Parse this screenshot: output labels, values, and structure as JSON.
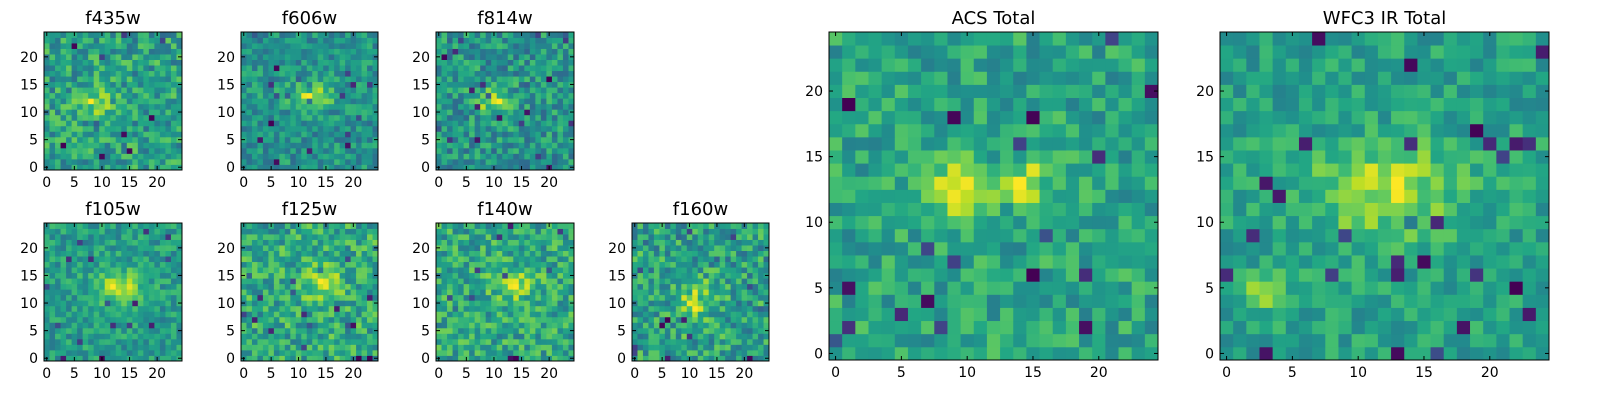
{
  "figure": {
    "description_title": ""
  },
  "chart_data": [
    {
      "type": "heatmap",
      "title": "f435w",
      "xlim": [
        0,
        24
      ],
      "ylim": [
        0,
        24
      ],
      "xticks": [
        0,
        5,
        10,
        15,
        20
      ],
      "yticks": [
        0,
        5,
        10,
        15,
        20
      ],
      "colormap": "viridis",
      "grid_size": 25,
      "seed": 11,
      "blobs": [
        {
          "cx": 9,
          "cy": 12,
          "sx": 2.0,
          "sy": 1.8,
          "amp": 0.35
        }
      ],
      "noise": 0.55,
      "base": 0.55
    },
    {
      "type": "heatmap",
      "title": "f606w",
      "xlim": [
        0,
        24
      ],
      "ylim": [
        0,
        24
      ],
      "xticks": [
        0,
        5,
        10,
        15,
        20
      ],
      "yticks": [
        0,
        5,
        10,
        15,
        20
      ],
      "colormap": "viridis",
      "grid_size": 25,
      "seed": 23,
      "blobs": [
        {
          "cx": 12,
          "cy": 13,
          "sx": 3.5,
          "sy": 1.5,
          "amp": 0.45
        }
      ],
      "noise": 0.45,
      "base": 0.5
    },
    {
      "type": "heatmap",
      "title": "f814w",
      "xlim": [
        0,
        24
      ],
      "ylim": [
        0,
        24
      ],
      "xticks": [
        0,
        5,
        10,
        15,
        20
      ],
      "yticks": [
        0,
        5,
        10,
        15,
        20
      ],
      "colormap": "viridis",
      "grid_size": 25,
      "seed": 37,
      "blobs": [
        {
          "cx": 10,
          "cy": 12,
          "sx": 2.5,
          "sy": 1.8,
          "amp": 0.4
        }
      ],
      "noise": 0.5,
      "base": 0.55
    },
    {
      "type": "heatmap",
      "title": "ACS Total",
      "xlim": [
        0,
        24
      ],
      "ylim": [
        0,
        24
      ],
      "xticks": [
        0,
        5,
        10,
        15,
        20
      ],
      "yticks": [
        0,
        5,
        10,
        15,
        20
      ],
      "colormap": "viridis",
      "grid_size": 25,
      "seed": 51,
      "blobs": [
        {
          "cx": 9.5,
          "cy": 12.5,
          "sx": 1.5,
          "sy": 1.6,
          "amp": 0.45
        },
        {
          "cx": 14.5,
          "cy": 13,
          "sx": 1.3,
          "sy": 1.3,
          "amp": 0.35
        }
      ],
      "noise": 0.35,
      "base": 0.58
    },
    {
      "type": "heatmap",
      "title": "WFC3 IR Total",
      "xlim": [
        0,
        24
      ],
      "ylim": [
        0,
        24
      ],
      "xticks": [
        0,
        5,
        10,
        15,
        20
      ],
      "yticks": [
        0,
        5,
        10,
        15,
        20
      ],
      "colormap": "viridis",
      "grid_size": 25,
      "seed": 67,
      "blobs": [
        {
          "cx": 12,
          "cy": 12.5,
          "sx": 4.0,
          "sy": 2.5,
          "amp": 0.35
        },
        {
          "cx": 3,
          "cy": 5,
          "sx": 1.5,
          "sy": 1.0,
          "amp": 0.3
        }
      ],
      "noise": 0.3,
      "base": 0.62
    },
    {
      "type": "heatmap",
      "title": "f105w",
      "xlim": [
        0,
        24
      ],
      "ylim": [
        0,
        24
      ],
      "xticks": [
        0,
        5,
        10,
        15,
        20
      ],
      "yticks": [
        0,
        5,
        10,
        15,
        20
      ],
      "colormap": "viridis",
      "grid_size": 25,
      "seed": 79,
      "blobs": [
        {
          "cx": 13,
          "cy": 13,
          "sx": 3.0,
          "sy": 2.2,
          "amp": 0.4
        }
      ],
      "noise": 0.35,
      "base": 0.6
    },
    {
      "type": "heatmap",
      "title": "f125w",
      "xlim": [
        0,
        24
      ],
      "ylim": [
        0,
        24
      ],
      "xticks": [
        0,
        5,
        10,
        15,
        20
      ],
      "yticks": [
        0,
        5,
        10,
        15,
        20
      ],
      "colormap": "viridis",
      "grid_size": 25,
      "seed": 83,
      "blobs": [
        {
          "cx": 14,
          "cy": 14,
          "sx": 2.5,
          "sy": 2.0,
          "amp": 0.3
        }
      ],
      "noise": 0.5,
      "base": 0.6
    },
    {
      "type": "heatmap",
      "title": "f140w",
      "xlim": [
        0,
        24
      ],
      "ylim": [
        0,
        24
      ],
      "xticks": [
        0,
        5,
        10,
        15,
        20
      ],
      "yticks": [
        0,
        5,
        10,
        15,
        20
      ],
      "colormap": "viridis",
      "grid_size": 25,
      "seed": 97,
      "blobs": [
        {
          "cx": 14,
          "cy": 13,
          "sx": 3.0,
          "sy": 2.0,
          "amp": 0.3
        }
      ],
      "noise": 0.5,
      "base": 0.6
    },
    {
      "type": "heatmap",
      "title": "f160w",
      "xlim": [
        0,
        24
      ],
      "ylim": [
        0,
        24
      ],
      "xticks": [
        0,
        5,
        10,
        15,
        20
      ],
      "yticks": [
        0,
        5,
        10,
        15,
        20
      ],
      "colormap": "viridis",
      "grid_size": 25,
      "seed": 101,
      "blobs": [
        {
          "cx": 11,
          "cy": 10,
          "sx": 2.0,
          "sy": 3.0,
          "amp": 0.35
        }
      ],
      "noise": 0.55,
      "base": 0.6
    }
  ]
}
